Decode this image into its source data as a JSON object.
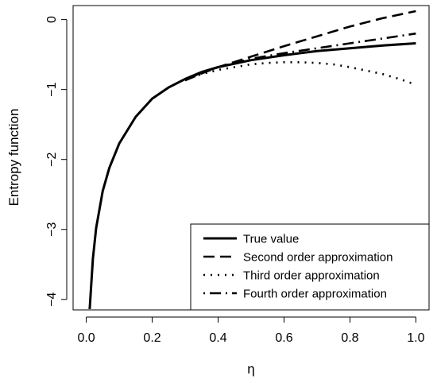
{
  "chart_data": {
    "type": "line",
    "title": "",
    "xlabel": "η",
    "ylabel": "Entropy function",
    "xlim": [
      -0.04,
      1.04
    ],
    "ylim": [
      -4.15,
      0.2
    ],
    "x_ticks": [
      0.0,
      0.2,
      0.4,
      0.6,
      0.8,
      1.0
    ],
    "x_tick_labels": [
      "0.0",
      "0.2",
      "0.4",
      "0.6",
      "0.8",
      "1.0"
    ],
    "y_ticks": [
      0,
      -1,
      -2,
      -3,
      -4
    ],
    "y_tick_labels": [
      "0",
      "−1",
      "−2",
      "−3",
      "−4"
    ],
    "grid": false,
    "legend_position": "bottom-right",
    "series": [
      {
        "name": "True value",
        "line_style": "solid",
        "x": [
          0.01,
          0.02,
          0.03,
          0.05,
          0.07,
          0.1,
          0.15,
          0.2,
          0.25,
          0.3,
          0.35,
          0.4,
          0.5,
          0.6,
          0.7,
          0.8,
          0.9,
          1.0
        ],
        "values": [
          -4.17,
          -3.42,
          -2.98,
          -2.45,
          -2.12,
          -1.77,
          -1.39,
          -1.13,
          -0.97,
          -0.85,
          -0.75,
          -0.68,
          -0.58,
          -0.51,
          -0.45,
          -0.41,
          -0.37,
          -0.34
        ]
      },
      {
        "name": "Second order approximation",
        "line_style": "dashed",
        "x": [
          0.3,
          0.35,
          0.4,
          0.5,
          0.6,
          0.7,
          0.8,
          0.9,
          1.0
        ],
        "values": [
          -0.87,
          -0.77,
          -0.68,
          -0.53,
          -0.38,
          -0.24,
          -0.1,
          0.02,
          0.12
        ]
      },
      {
        "name": "Third order approximation",
        "line_style": "dotted",
        "x": [
          0.3,
          0.35,
          0.4,
          0.45,
          0.5,
          0.55,
          0.6,
          0.65,
          0.7,
          0.75,
          0.8,
          0.85,
          0.9,
          0.95,
          1.0
        ],
        "values": [
          -0.86,
          -0.78,
          -0.72,
          -0.68,
          -0.64,
          -0.62,
          -0.61,
          -0.61,
          -0.62,
          -0.64,
          -0.68,
          -0.73,
          -0.78,
          -0.85,
          -0.93
        ]
      },
      {
        "name": "Fourth order approximation",
        "line_style": "dotdash",
        "x": [
          0.3,
          0.35,
          0.4,
          0.5,
          0.6,
          0.7,
          0.8,
          0.9,
          1.0
        ],
        "values": [
          -0.86,
          -0.76,
          -0.68,
          -0.56,
          -0.48,
          -0.41,
          -0.34,
          -0.27,
          -0.2
        ]
      }
    ]
  }
}
